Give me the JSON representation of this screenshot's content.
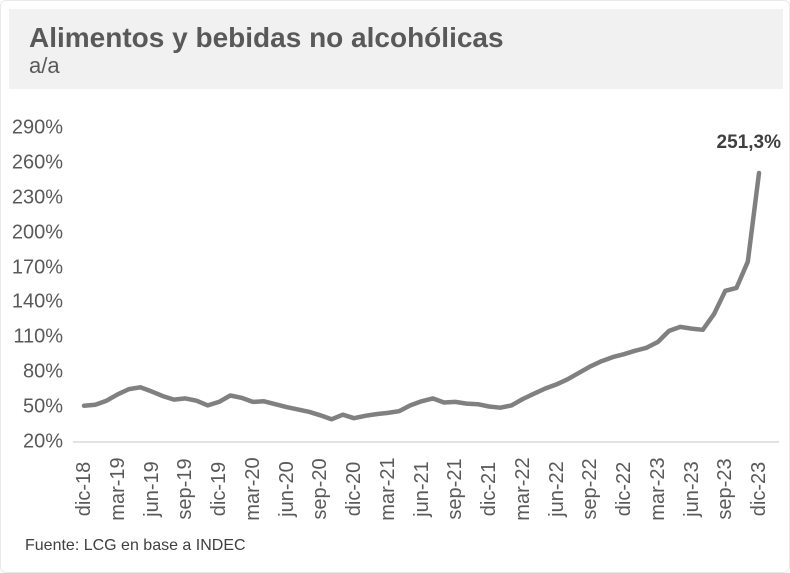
{
  "header": {
    "title": "Alimentos y bebidas no alcohólicas",
    "subtitle": "a/a"
  },
  "footer": {
    "source": "Fuente: LCG en base a INDEC"
  },
  "colors": {
    "line": "#808080",
    "axis_line": "#d9d9d9",
    "tick_label": "#595959",
    "title": "#595959",
    "annotation": "#3f3f3f",
    "header_background": "#f1f1f1"
  },
  "chart_data": {
    "type": "line",
    "title": "Alimentos y bebidas no alcohólicas",
    "subtitle": "a/a",
    "series_name": "Alimentos y bebidas no alcohólicas a/a",
    "ylabel": "",
    "xlabel": "",
    "ylim": [
      20,
      290
    ],
    "y_tick_values": [
      290,
      260,
      230,
      200,
      170,
      140,
      110,
      80,
      50,
      20
    ],
    "y_tick_labels": [
      "290%",
      "260%",
      "230%",
      "200%",
      "170%",
      "140%",
      "110%",
      "80%",
      "50%",
      "20%"
    ],
    "x_tick_step": 3,
    "grid": false,
    "x": [
      "dic-18",
      "ene-19",
      "feb-19",
      "mar-19",
      "abr-19",
      "may-19",
      "jun-19",
      "jul-19",
      "ago-19",
      "sep-19",
      "oct-19",
      "nov-19",
      "dic-19",
      "ene-20",
      "feb-20",
      "mar-20",
      "abr-20",
      "may-20",
      "jun-20",
      "jul-20",
      "ago-20",
      "sep-20",
      "oct-20",
      "nov-20",
      "dic-20",
      "ene-21",
      "feb-21",
      "mar-21",
      "abr-21",
      "may-21",
      "jun-21",
      "jul-21",
      "ago-21",
      "sep-21",
      "oct-21",
      "nov-21",
      "dic-21",
      "ene-22",
      "feb-22",
      "mar-22",
      "abr-22",
      "may-22",
      "jun-22",
      "jul-22",
      "ago-22",
      "sep-22",
      "oct-22",
      "nov-22",
      "dic-22",
      "ene-23",
      "feb-23",
      "mar-23",
      "abr-23",
      "may-23",
      "jun-23",
      "jul-23",
      "ago-23",
      "sep-23",
      "oct-23",
      "nov-23",
      "dic-23"
    ],
    "values": [
      51.2,
      52,
      55.5,
      61,
      65.5,
      67,
      63.5,
      59.5,
      56.5,
      57.5,
      55.5,
      51.5,
      54.5,
      60,
      58,
      54.5,
      55,
      52.5,
      50,
      48,
      46,
      43,
      39.5,
      43.5,
      40.5,
      42.5,
      44,
      45,
      46.5,
      51.5,
      55,
      57.5,
      54,
      54.5,
      53,
      52.5,
      50.5,
      49.5,
      51.5,
      57,
      61.5,
      66,
      69.5,
      74,
      79.5,
      85,
      89.5,
      93,
      95.5,
      98.5,
      101,
      106,
      115.5,
      119,
      117.5,
      116.5,
      130,
      150,
      152.5,
      175,
      251.3
    ],
    "annotation": {
      "label": "251,3%",
      "value": 251.3,
      "x": "dic-23"
    },
    "legend": null
  }
}
